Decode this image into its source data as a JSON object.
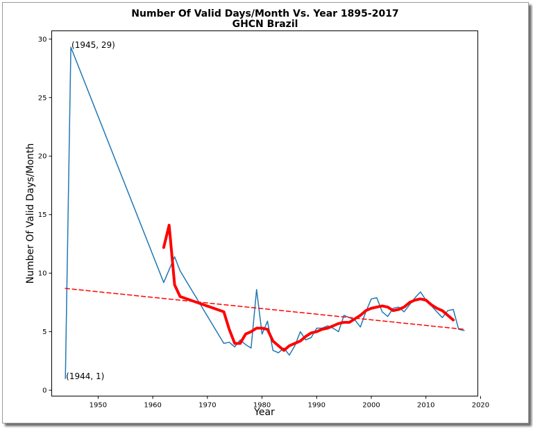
{
  "chart_data": {
    "type": "line",
    "title": "Number Of Valid Days/Month Vs. Year 1895-2017",
    "subtitle": "GHCN Brazil",
    "xlabel": "Year",
    "ylabel": "Number Of Valid Days/Month",
    "xlim": [
      1941.5,
      2019.5
    ],
    "ylim": [
      -0.5,
      30.7
    ],
    "xticks": [
      "1950",
      "1960",
      "1970",
      "1980",
      "1990",
      "2000",
      "2010",
      "2020"
    ],
    "yticks": [
      "0",
      "5",
      "10",
      "15",
      "20",
      "25",
      "30"
    ],
    "grid": false,
    "series": [
      {
        "style": "thin-line",
        "color": "#1f77b4",
        "x": [
          1944,
          1945,
          1962,
          1964,
          1965,
          1973,
          1974,
          1975,
          1976,
          1977,
          1978,
          1979,
          1980,
          1981,
          1982,
          1983,
          1984,
          1985,
          1986,
          1987,
          1988,
          1989,
          1990,
          1991,
          1992,
          1993,
          1994,
          1995,
          1996,
          1997,
          1998,
          1999,
          2000,
          2001,
          2002,
          2003,
          2004,
          2005,
          2006,
          2007,
          2008,
          2009,
          2010,
          2011,
          2012,
          2013,
          2014,
          2015,
          2016,
          2017
        ],
        "y": [
          1,
          29.3,
          9.2,
          11.4,
          10.2,
          4.0,
          4.1,
          3.7,
          4.3,
          3.9,
          3.6,
          8.6,
          4.8,
          5.9,
          3.4,
          3.2,
          3.6,
          3.0,
          3.8,
          5.0,
          4.3,
          4.5,
          5.3,
          5.3,
          5.5,
          5.3,
          5.0,
          6.4,
          6.2,
          6.0,
          5.4,
          6.7,
          7.8,
          7.9,
          6.7,
          6.3,
          7.0,
          7.1,
          6.7,
          7.3,
          7.9,
          8.4,
          7.7,
          7.2,
          6.7,
          6.2,
          6.8,
          6.9,
          5.2,
          5.1
        ]
      },
      {
        "style": "thick-line",
        "color": "#ff0000",
        "x": [
          1962,
          1963,
          1964,
          1965,
          1973,
          1974,
          1975,
          1976,
          1977,
          1978,
          1979,
          1980,
          1981,
          1982,
          1983,
          1984,
          1985,
          1986,
          1987,
          1988,
          1989,
          1990,
          1991,
          1992,
          1993,
          1994,
          1995,
          1996,
          1997,
          1998,
          1999,
          2000,
          2001,
          2002,
          2003,
          2004,
          2005,
          2006,
          2007,
          2008,
          2009,
          2010,
          2011,
          2012,
          2013,
          2014,
          2015
        ],
        "y": [
          12.2,
          14.1,
          9.0,
          8.0,
          6.7,
          5.2,
          4.0,
          4.0,
          4.8,
          5.0,
          5.3,
          5.3,
          5.2,
          4.2,
          3.8,
          3.4,
          3.8,
          4.0,
          4.2,
          4.6,
          4.9,
          5.0,
          5.2,
          5.3,
          5.5,
          5.7,
          5.8,
          5.8,
          6.1,
          6.4,
          6.8,
          7.0,
          7.1,
          7.2,
          7.1,
          6.8,
          6.9,
          7.1,
          7.5,
          7.7,
          7.8,
          7.7,
          7.3,
          7.0,
          6.8,
          6.4,
          6.0
        ]
      },
      {
        "style": "dashed-line",
        "color": "#ff0000",
        "x": [
          1944,
          2017
        ],
        "y": [
          8.7,
          5.2
        ]
      }
    ],
    "annotations": [
      {
        "text": "(1945, 29)",
        "x": 1945,
        "y": 29.3
      },
      {
        "text": "(1944, 1)",
        "x": 1944,
        "y": 1
      }
    ]
  }
}
